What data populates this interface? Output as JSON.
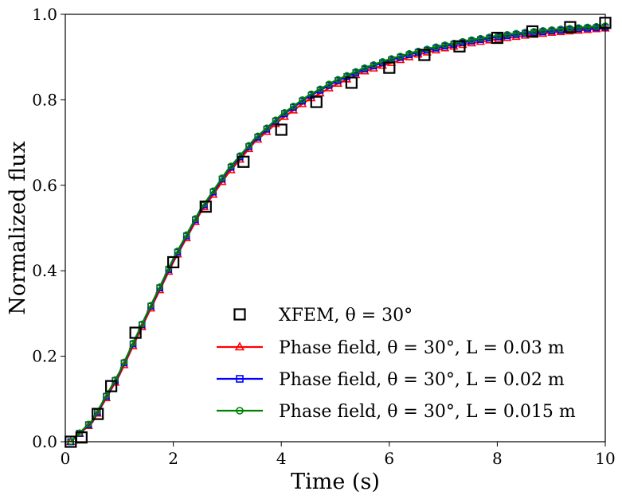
{
  "chart_data": {
    "type": "line",
    "xlabel": "Time (s)",
    "ylabel": "Normalized flux",
    "xlim": [
      0,
      10
    ],
    "ylim": [
      0,
      1.0
    ],
    "xticks": [
      0,
      2,
      4,
      6,
      8,
      10
    ],
    "yticks": [
      0.0,
      0.2,
      0.4,
      0.6,
      0.8,
      1.0
    ],
    "xtick_labels": [
      "0",
      "2",
      "4",
      "6",
      "8",
      "10"
    ],
    "ytick_labels": [
      "0.0",
      "0.2",
      "0.4",
      "0.6",
      "0.8",
      "1.0"
    ],
    "grid": false,
    "legend_position": "lower-right",
    "legend": [
      "XFEM, θ = 30°",
      "Phase field, θ = 30°, L = 0.03 m",
      "Phase field, θ = 30°, L = 0.02 m",
      "Phase field, θ = 30°, L = 0.015 m"
    ],
    "series": [
      {
        "name": "XFEM, θ = 30°",
        "color": "#000000",
        "marker": "square-open",
        "line": false,
        "x": [
          0.1,
          0.3,
          0.6,
          0.85,
          1.3,
          2.0,
          2.6,
          3.3,
          4.0,
          4.65,
          5.3,
          6.0,
          6.65,
          7.3,
          8.0,
          8.65,
          9.35,
          10.0
        ],
        "y": [
          0.0,
          0.01,
          0.065,
          0.13,
          0.255,
          0.42,
          0.55,
          0.655,
          0.73,
          0.795,
          0.84,
          0.875,
          0.905,
          0.925,
          0.945,
          0.96,
          0.97,
          0.98
        ]
      },
      {
        "name": "Phase field, θ = 30°, L = 0.03 m",
        "color": "#ff0000",
        "marker": "triangle",
        "line": true,
        "x": [
          0.1,
          0.5,
          1.0,
          1.5,
          2.0,
          2.5,
          3.0,
          3.5,
          4.0,
          4.5,
          5.0,
          5.5,
          6.0,
          6.5,
          7.0,
          7.5,
          8.0,
          8.5,
          9.0,
          9.5,
          10.0
        ],
        "y": [
          0.0,
          0.045,
          0.155,
          0.29,
          0.42,
          0.535,
          0.625,
          0.7,
          0.755,
          0.8,
          0.835,
          0.865,
          0.885,
          0.905,
          0.92,
          0.932,
          0.942,
          0.95,
          0.957,
          0.962,
          0.967
        ]
      },
      {
        "name": "Phase field, θ = 30°, L = 0.02 m",
        "color": "#0000ff",
        "marker": "square",
        "line": true,
        "x": [
          0.1,
          0.5,
          1.0,
          1.5,
          2.0,
          2.5,
          3.0,
          3.5,
          4.0,
          4.5,
          5.0,
          5.5,
          6.0,
          6.5,
          7.0,
          7.5,
          8.0,
          8.5,
          9.0,
          9.5,
          10.0
        ],
        "y": [
          0.0,
          0.048,
          0.16,
          0.295,
          0.425,
          0.54,
          0.632,
          0.705,
          0.762,
          0.807,
          0.842,
          0.87,
          0.892,
          0.91,
          0.925,
          0.937,
          0.947,
          0.955,
          0.961,
          0.966,
          0.97
        ]
      },
      {
        "name": "Phase field, θ = 30°, L = 0.015 m",
        "color": "#008000",
        "marker": "circle",
        "line": true,
        "x": [
          0.1,
          0.5,
          1.0,
          1.5,
          2.0,
          2.5,
          3.0,
          3.5,
          4.0,
          4.5,
          5.0,
          5.5,
          6.0,
          6.5,
          7.0,
          7.5,
          8.0,
          8.5,
          9.0,
          9.5,
          10.0
        ],
        "y": [
          0.0,
          0.05,
          0.162,
          0.297,
          0.428,
          0.543,
          0.635,
          0.708,
          0.765,
          0.81,
          0.845,
          0.873,
          0.895,
          0.913,
          0.928,
          0.94,
          0.95,
          0.958,
          0.964,
          0.969,
          0.973
        ]
      }
    ]
  }
}
